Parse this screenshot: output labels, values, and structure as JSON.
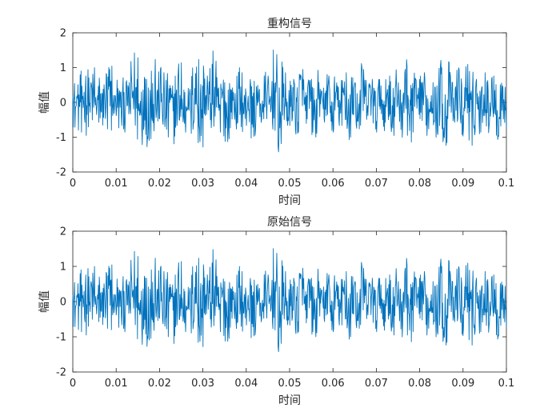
{
  "chart_data": [
    {
      "type": "line",
      "title": "重构信号",
      "xlabel": "时间",
      "ylabel": "幅值",
      "xlim": [
        0,
        0.1
      ],
      "ylim": [
        -2,
        2
      ],
      "x_ticks": [
        "0",
        "0.01",
        "0.02",
        "0.03",
        "0.04",
        "0.05",
        "0.06",
        "0.07",
        "0.08",
        "0.09",
        "0.1"
      ],
      "y_ticks": [
        "2",
        "1",
        "0",
        "-1",
        "-2"
      ],
      "grid": false,
      "series_color": "#0072BD",
      "series": [
        {
          "sample_count": 1000,
          "x_start": 0,
          "x_end": 0.1,
          "values_sketch": [
            0.2,
            -0.9,
            0.8,
            -0.3,
            1.05,
            -0.6,
            0.4,
            -0.8,
            1.1,
            -0.4,
            0.3,
            -0.9,
            0.6,
            -0.2,
            1.35,
            -1.28,
            0.7,
            -1.1,
            1.3,
            -0.5,
            0.9,
            -1.05,
            0.5,
            -0.7,
            1.2,
            -0.9,
            0.4,
            -0.5,
            1.3,
            -1.35,
            0.8,
            -0.4,
            1.25,
            -0.9,
            0.6,
            -1.1,
            0.3,
            -0.6,
            0.9,
            -0.7,
            0.5,
            -1.0,
            0.4,
            -0.5,
            0.8,
            -0.6,
            1.45,
            -1.25,
            0.9,
            -0.7,
            0.6,
            -0.9,
            1.0,
            -0.5,
            0.7,
            -1.05,
            0.4,
            -0.6,
            0.8,
            -0.9,
            0.5,
            -0.7,
            0.9,
            -1.05,
            0.6,
            -0.8,
            1.0,
            -0.4,
            0.7,
            -0.9,
            0.5,
            -0.6,
            0.8,
            -1.0,
            0.6,
            -0.7,
            1.1,
            -1.2,
            0.7,
            -0.5,
            0.9,
            -0.8,
            0.6,
            -0.9,
            1.05,
            -1.3,
            0.8,
            -0.6,
            1.0,
            -0.8,
            1.15,
            -1.3,
            0.7,
            -0.9,
            0.9,
            -0.6,
            0.8,
            -1.0,
            0.5,
            -0.7
          ]
        }
      ]
    },
    {
      "type": "line",
      "title": "原始信号",
      "xlabel": "时间",
      "ylabel": "幅值",
      "xlim": [
        0,
        0.1
      ],
      "ylim": [
        -2,
        2
      ],
      "x_ticks": [
        "0",
        "0.01",
        "0.02",
        "0.03",
        "0.04",
        "0.05",
        "0.06",
        "0.07",
        "0.08",
        "0.09",
        "0.1"
      ],
      "y_ticks": [
        "2",
        "1",
        "0",
        "-1",
        "-2"
      ],
      "grid": false,
      "series_color": "#0072BD",
      "series": [
        {
          "sample_count": 1000,
          "x_start": 0,
          "x_end": 0.1,
          "values_sketch": [
            0.2,
            -0.9,
            0.8,
            -0.3,
            1.05,
            -0.6,
            0.4,
            -0.8,
            1.1,
            -0.4,
            0.3,
            -0.9,
            0.6,
            -0.2,
            1.35,
            -1.28,
            0.7,
            -1.1,
            1.3,
            -0.5,
            0.9,
            -1.05,
            0.5,
            -0.7,
            1.2,
            -0.9,
            0.4,
            -0.5,
            1.3,
            -1.35,
            0.8,
            -0.4,
            1.25,
            -0.9,
            0.6,
            -1.1,
            0.3,
            -0.6,
            0.9,
            -0.7,
            0.5,
            -1.0,
            0.4,
            -0.5,
            0.8,
            -0.6,
            1.45,
            -1.25,
            0.9,
            -0.7,
            0.6,
            -0.9,
            1.0,
            -0.5,
            0.7,
            -1.05,
            0.4,
            -0.6,
            0.8,
            -0.9,
            0.5,
            -0.7,
            0.9,
            -1.05,
            0.6,
            -0.8,
            1.0,
            -0.4,
            0.7,
            -0.9,
            0.5,
            -0.6,
            0.8,
            -1.0,
            0.6,
            -0.7,
            1.1,
            -1.2,
            0.7,
            -0.5,
            0.9,
            -0.8,
            0.6,
            -0.9,
            1.05,
            -1.3,
            0.8,
            -0.6,
            1.0,
            -0.8,
            1.15,
            -1.3,
            0.7,
            -0.9,
            0.9,
            -0.6,
            0.8,
            -1.0,
            0.5,
            -0.7
          ]
        }
      ]
    }
  ]
}
